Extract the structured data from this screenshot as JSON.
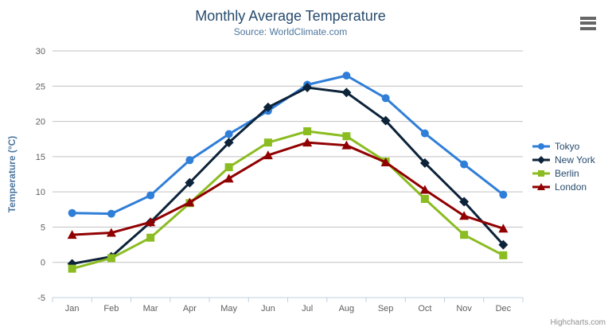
{
  "header": {
    "title": "Monthly Average Temperature",
    "subtitle": "Source: WorldClimate.com"
  },
  "credit": {
    "label": "Highcharts.com"
  },
  "icons": {
    "context_menu": "hamburger-menu-icon"
  },
  "colors": {
    "title": "#274b6d",
    "subtitle": "#4d759e",
    "axis_labels": "#606060",
    "grid_line": "#c0c0c0",
    "x_axis_line": "#c0d0e0",
    "legend_text": "#274b6d",
    "credit_text": "#909090"
  },
  "chart_data": {
    "type": "line",
    "title": "Monthly Average Temperature",
    "subtitle": "Source: WorldClimate.com",
    "xlabel": "",
    "ylabel": "Temperature (°C)",
    "ylim": [
      -5,
      30
    ],
    "ytick_step": 5,
    "grid": true,
    "legend_position": "right",
    "categories": [
      "Jan",
      "Feb",
      "Mar",
      "Apr",
      "May",
      "Jun",
      "Jul",
      "Aug",
      "Sep",
      "Oct",
      "Nov",
      "Dec"
    ],
    "series": [
      {
        "name": "Tokyo",
        "color": "#2f7ed8",
        "marker": "circle",
        "values": [
          7.0,
          6.9,
          9.5,
          14.5,
          18.2,
          21.5,
          25.2,
          26.5,
          23.3,
          18.3,
          13.9,
          9.6
        ]
      },
      {
        "name": "New York",
        "color": "#0d233a",
        "marker": "diamond",
        "values": [
          -0.2,
          0.8,
          5.7,
          11.3,
          17.0,
          22.0,
          24.8,
          24.1,
          20.1,
          14.1,
          8.6,
          2.5
        ]
      },
      {
        "name": "Berlin",
        "color": "#8bbc21",
        "marker": "square",
        "values": [
          -0.9,
          0.6,
          3.5,
          8.4,
          13.5,
          17.0,
          18.6,
          17.9,
          14.3,
          9.0,
          3.9,
          1.0
        ]
      },
      {
        "name": "London",
        "color": "#910000",
        "marker": "triangle",
        "values": [
          3.9,
          4.2,
          5.7,
          8.5,
          11.9,
          15.2,
          17.0,
          16.6,
          14.2,
          10.3,
          6.6,
          4.8
        ]
      }
    ]
  }
}
